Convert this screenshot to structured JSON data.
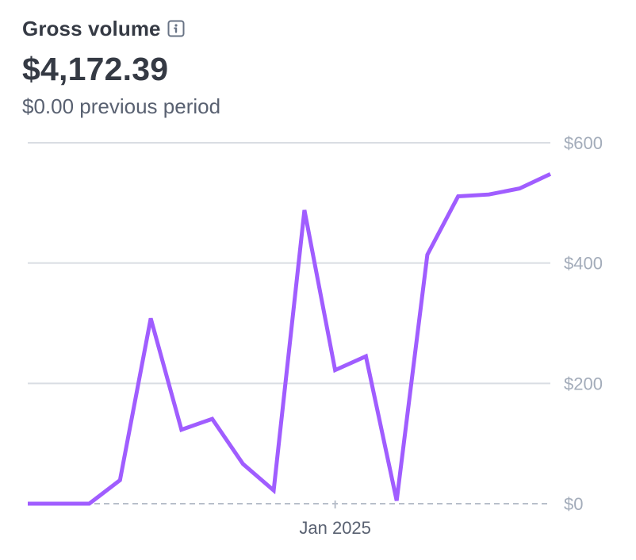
{
  "header": {
    "title": "Gross volume",
    "info_icon": "info-icon",
    "amount": "$4,172.39",
    "previous": "$0.00 previous period"
  },
  "colors": {
    "line": "#a05dff",
    "grid": "#d9dde3",
    "baseline": "#b8bfca",
    "tick": "#a3acba",
    "text": "#353a44",
    "muted": "#596171"
  },
  "chart_data": {
    "type": "line",
    "title": "Gross volume",
    "xlabel": "",
    "ylabel": "",
    "ylim": [
      0,
      600
    ],
    "yticks": [
      0,
      200,
      400,
      600
    ],
    "ytick_labels": [
      "$0",
      "$200",
      "$400",
      "$600"
    ],
    "y_axis_position": "right",
    "grid": true,
    "xticks": [
      {
        "index": 10,
        "label": "Jan 2025"
      }
    ],
    "series": [
      {
        "values": [
          0,
          0,
          0,
          39,
          308,
          123,
          141,
          66,
          22,
          488,
          222,
          245,
          5,
          414,
          511,
          514,
          524,
          548
        ]
      }
    ]
  }
}
